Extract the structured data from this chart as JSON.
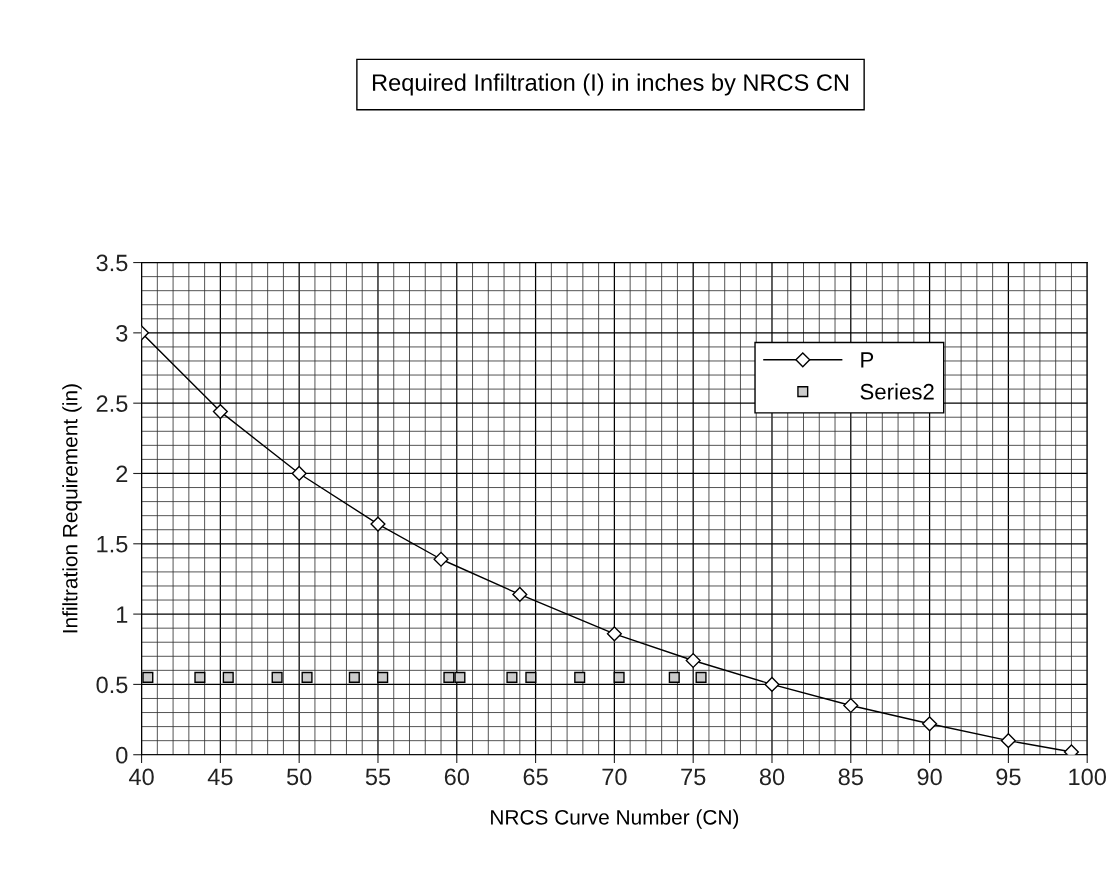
{
  "chart_data": {
    "type": "line",
    "title": "Required Infiltration (I) in inches by NRCS CN",
    "xlabel": "NRCS Curve Number (CN)",
    "ylabel": "Infiltration Requirement (in)",
    "xlim": [
      40,
      100
    ],
    "xticks": [
      40,
      45,
      50,
      55,
      60,
      65,
      70,
      75,
      80,
      85,
      90,
      95,
      100
    ],
    "ylim": [
      0,
      3.5
    ],
    "yticks": [
      0,
      0.5,
      1,
      1.5,
      2,
      2.5,
      3,
      3.5
    ],
    "grid": true,
    "legend": "top right",
    "series": [
      {
        "name": "P",
        "marker": "diamond",
        "line_style": "solid",
        "color": "#000000",
        "x": [
          40,
          45,
          50,
          55,
          59,
          64,
          70,
          75,
          80,
          85,
          90,
          95,
          99
        ],
        "values": [
          3.0,
          2.44,
          2.0,
          1.64,
          1.39,
          1.14,
          0.86,
          0.67,
          0.5,
          0.35,
          0.22,
          0.1,
          0.02
        ]
      },
      {
        "name": "Series2",
        "type": "scatter",
        "marker": "square",
        "color": "#000000",
        "x": [
          40.4,
          43.7,
          45.5,
          48.6,
          50.5,
          53.5,
          55.3,
          59.5,
          60.2,
          63.5,
          64.7,
          67.8,
          70.3,
          73.8,
          75.5
        ],
        "values": [
          0.55,
          0.55,
          0.55,
          0.55,
          0.55,
          0.55,
          0.55,
          0.55,
          0.55,
          0.55,
          0.55,
          0.55,
          0.55,
          0.55,
          0.55
        ]
      }
    ]
  }
}
